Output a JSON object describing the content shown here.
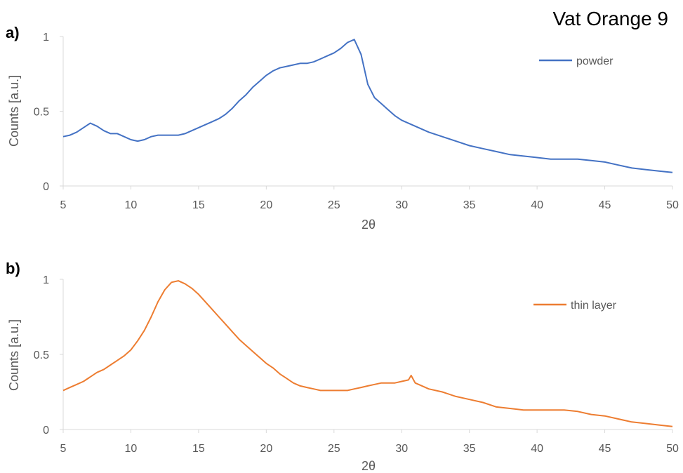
{
  "figure_title": "Vat Orange 9",
  "chart_data": [
    {
      "type": "line",
      "panel_label": "a)",
      "xlabel": "2θ",
      "ylabel": "Counts [a.u.]",
      "xlim": [
        5,
        50
      ],
      "ylim": [
        0,
        1
      ],
      "xticks": [
        "5",
        "10",
        "15",
        "20",
        "25",
        "30",
        "35",
        "40",
        "45",
        "50"
      ],
      "yticks": [
        "0",
        "0.5",
        "1"
      ],
      "legend_position": "top-right",
      "series": [
        {
          "name": "powder",
          "color": "#4472c4",
          "x": [
            5,
            5.5,
            6,
            6.5,
            7,
            7.5,
            8,
            8.5,
            9,
            9.5,
            10,
            10.5,
            11,
            11.5,
            12,
            12.5,
            13,
            13.5,
            14,
            14.5,
            15,
            15.5,
            16,
            16.5,
            17,
            17.5,
            18,
            18.5,
            19,
            19.5,
            20,
            20.5,
            21,
            21.5,
            22,
            22.5,
            23,
            23.5,
            24,
            24.5,
            25,
            25.5,
            26,
            26.5,
            27,
            27.5,
            28,
            28.5,
            29,
            29.5,
            30,
            31,
            32,
            33,
            34,
            35,
            36,
            37,
            38,
            39,
            40,
            41,
            42,
            43,
            44,
            45,
            46,
            47,
            48,
            49,
            50
          ],
          "y": [
            0.33,
            0.34,
            0.36,
            0.39,
            0.42,
            0.4,
            0.37,
            0.35,
            0.35,
            0.33,
            0.31,
            0.3,
            0.31,
            0.33,
            0.34,
            0.34,
            0.34,
            0.34,
            0.35,
            0.37,
            0.39,
            0.41,
            0.43,
            0.45,
            0.48,
            0.52,
            0.57,
            0.61,
            0.66,
            0.7,
            0.74,
            0.77,
            0.79,
            0.8,
            0.81,
            0.82,
            0.82,
            0.83,
            0.85,
            0.87,
            0.89,
            0.92,
            0.96,
            0.98,
            0.88,
            0.68,
            0.59,
            0.55,
            0.51,
            0.47,
            0.44,
            0.4,
            0.36,
            0.33,
            0.3,
            0.27,
            0.25,
            0.23,
            0.21,
            0.2,
            0.19,
            0.18,
            0.18,
            0.18,
            0.17,
            0.16,
            0.14,
            0.12,
            0.11,
            0.1,
            0.09
          ]
        }
      ]
    },
    {
      "type": "line",
      "panel_label": "b)",
      "xlabel": "2θ",
      "ylabel": "Counts [a.u.]",
      "xlim": [
        5,
        50
      ],
      "ylim": [
        0,
        1
      ],
      "xticks": [
        "5",
        "10",
        "15",
        "20",
        "25",
        "30",
        "35",
        "40",
        "45",
        "50"
      ],
      "yticks": [
        "0",
        "0.5",
        "1"
      ],
      "legend_position": "top-right",
      "series": [
        {
          "name": "thin layer",
          "color": "#ed7d31",
          "x": [
            5,
            5.5,
            6,
            6.5,
            7,
            7.5,
            8,
            8.5,
            9,
            9.5,
            10,
            10.5,
            11,
            11.5,
            12,
            12.5,
            13,
            13.5,
            14,
            14.5,
            15,
            15.5,
            16,
            16.5,
            17,
            17.5,
            18,
            18.5,
            19,
            19.5,
            20,
            20.5,
            21,
            21.5,
            22,
            22.5,
            23,
            23.5,
            24,
            24.5,
            25,
            25.5,
            26,
            26.5,
            27,
            27.5,
            28,
            28.5,
            29,
            29.5,
            30,
            30.5,
            30.7,
            31,
            31.5,
            32,
            33,
            34,
            35,
            36,
            37,
            38,
            39,
            40,
            41,
            42,
            43,
            44,
            45,
            46,
            47,
            48,
            49,
            50
          ],
          "y": [
            0.26,
            0.28,
            0.3,
            0.32,
            0.35,
            0.38,
            0.4,
            0.43,
            0.46,
            0.49,
            0.53,
            0.59,
            0.66,
            0.75,
            0.85,
            0.93,
            0.98,
            0.99,
            0.97,
            0.94,
            0.9,
            0.85,
            0.8,
            0.75,
            0.7,
            0.65,
            0.6,
            0.56,
            0.52,
            0.48,
            0.44,
            0.41,
            0.37,
            0.34,
            0.31,
            0.29,
            0.28,
            0.27,
            0.26,
            0.26,
            0.26,
            0.26,
            0.26,
            0.27,
            0.28,
            0.29,
            0.3,
            0.31,
            0.31,
            0.31,
            0.32,
            0.33,
            0.36,
            0.31,
            0.29,
            0.27,
            0.25,
            0.22,
            0.2,
            0.18,
            0.15,
            0.14,
            0.13,
            0.13,
            0.13,
            0.13,
            0.12,
            0.1,
            0.09,
            0.07,
            0.05,
            0.04,
            0.03,
            0.02
          ]
        }
      ]
    }
  ]
}
